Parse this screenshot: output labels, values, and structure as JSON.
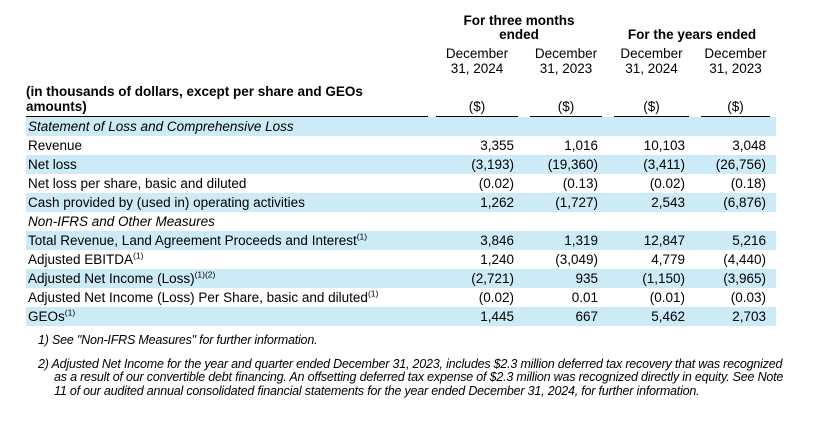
{
  "colors": {
    "stripe": "#cdeaf7",
    "text": "#000000",
    "rule": "#000000",
    "page_background": "#ffffff"
  },
  "table": {
    "period_groups": [
      {
        "label": "For three months ended"
      },
      {
        "label": "For the years ended"
      }
    ],
    "column_headers": [
      "December 31, 2024",
      "December 31, 2023",
      "December 31, 2024",
      "December 31, 2023"
    ],
    "row_label_header": "(in thousands of dollars, except per share and GEOs amounts)",
    "unit_label": "($)",
    "rows": [
      {
        "label": "Statement of Loss and Comprehensive Loss",
        "style": "section",
        "sup": "",
        "values": [
          "",
          "",
          "",
          ""
        ]
      },
      {
        "label": "Revenue",
        "style": "",
        "sup": "",
        "values": [
          "3,355",
          "1,016",
          "10,103",
          "3,048"
        ]
      },
      {
        "label": "Net loss",
        "style": "",
        "sup": "",
        "values": [
          "(3,193)",
          "(19,360)",
          "(3,411)",
          "(26,756)"
        ]
      },
      {
        "label": "Net loss per share, basic and diluted",
        "style": "",
        "sup": "",
        "values": [
          "(0.02)",
          "(0.13)",
          "(0.02)",
          "(0.18)"
        ]
      },
      {
        "label": "Cash provided by (used in) operating activities",
        "style": "",
        "sup": "",
        "values": [
          "1,262",
          "(1,727)",
          "2,543",
          "(6,876)"
        ]
      },
      {
        "label": "Non-IFRS and Other Measures",
        "style": "section",
        "sup": "",
        "values": [
          "",
          "",
          "",
          ""
        ]
      },
      {
        "label": "Total Revenue, Land Agreement Proceeds and Interest",
        "style": "",
        "sup": "(1)",
        "values": [
          "3,846",
          "1,319",
          "12,847",
          "5,216"
        ]
      },
      {
        "label": "Adjusted EBITDA",
        "style": "",
        "sup": "(1)",
        "values": [
          "1,240",
          "(3,049)",
          "4,779",
          "(4,440)"
        ]
      },
      {
        "label": "Adjusted Net Income (Loss)",
        "style": "",
        "sup": "(1)(2)",
        "values": [
          "(2,721)",
          "935",
          "(1,150)",
          "(3,965)"
        ]
      },
      {
        "label": "Adjusted Net Income (Loss) Per Share, basic and diluted",
        "style": "",
        "sup": "(1)",
        "values": [
          "(0.02)",
          "0.01",
          "(0.01)",
          "(0.03)"
        ]
      },
      {
        "label": "GEOs",
        "style": "",
        "sup": "(1)",
        "values": [
          "1,445",
          "667",
          "5,462",
          "2,703"
        ]
      }
    ]
  },
  "footnotes": [
    {
      "marker": "1)",
      "text": "See \"Non-IFRS Measures\" for further information."
    },
    {
      "marker": "2)",
      "text": "Adjusted Net Income for the year and quarter ended December 31, 2023, includes $2.3 million deferred tax recovery that was recognized as a result of our convertible debt financing. An offsetting deferred tax expense of $2.3 million was recognized directly in equity. See Note 11 of our audited annual consolidated financial statements for the year ended December 31, 2024, for further information."
    }
  ]
}
